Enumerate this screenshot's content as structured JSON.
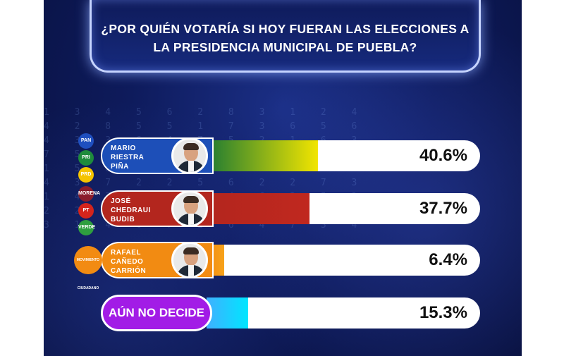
{
  "title": "¿POR QUIÉN VOTARÍA SI HOY FUERAN LAS ELECCIONES A LA PRESIDENCIA MUNICIPAL DE PUEBLA?",
  "chart_data": {
    "type": "bar",
    "title": "¿POR QUIÉN VOTARÍA SI HOY FUERAN LAS ELECCIONES A LA PRESIDENCIA MUNICIPAL DE PUEBLA?",
    "categories": [
      "MARIO RIESTRA PIÑA",
      "JOSÉ CHEDRAUI BUDIB",
      "RAFAEL CAÑEDO CARRIÓN",
      "AÚN NO DECIDE"
    ],
    "values": [
      40.6,
      37.7,
      6.4,
      15.3
    ],
    "value_labels": [
      "40.6%",
      "37.7%",
      "6.4%",
      "15.3%"
    ],
    "unit": "%"
  },
  "candidates": [
    {
      "name": "MARIO\nRIESTRA\nPIÑA",
      "value_label": "40.6%",
      "value": 40.6,
      "label_color": "#1d4fb8",
      "bar_gradient": [
        "#1e7a33",
        "#f2e500"
      ],
      "parties": [
        "PAN",
        "PRI",
        "PRD"
      ],
      "party_colors": [
        "#1f4fbf",
        "#1e8b3c",
        "#f5c400"
      ],
      "icon": "person-avatar-icon"
    },
    {
      "name": "JOSÉ\nCHEDRAUI\nBUDIB",
      "value_label": "37.7%",
      "value": 37.7,
      "label_color": "#b3261e",
      "bar_gradient": [
        "#b3261e",
        "#c0281f"
      ],
      "parties": [
        "MORENA",
        "PT",
        "VERDE"
      ],
      "party_colors": [
        "#8b1d2c",
        "#d4241c",
        "#2e9e3f"
      ],
      "icon": "person-avatar-icon"
    },
    {
      "name": "RAFAEL\nCAÑEDO\nCARRIÓN",
      "value_label": "6.4%",
      "value": 6.4,
      "label_color": "#f28b12",
      "bar_gradient": [
        "#f28b12",
        "#f7a21a"
      ],
      "parties": [
        "MOVIMIENTO CIUDADANO"
      ],
      "party_colors": [
        "#f28b12"
      ],
      "icon": "person-avatar-icon"
    }
  ],
  "undecided": {
    "label": "AÚN NO DECIDE",
    "value_label": "15.3%",
    "value": 15.3,
    "label_color": "#a21ce6",
    "bar_gradient": [
      "#3fb0ff",
      "#00e6ff"
    ]
  }
}
